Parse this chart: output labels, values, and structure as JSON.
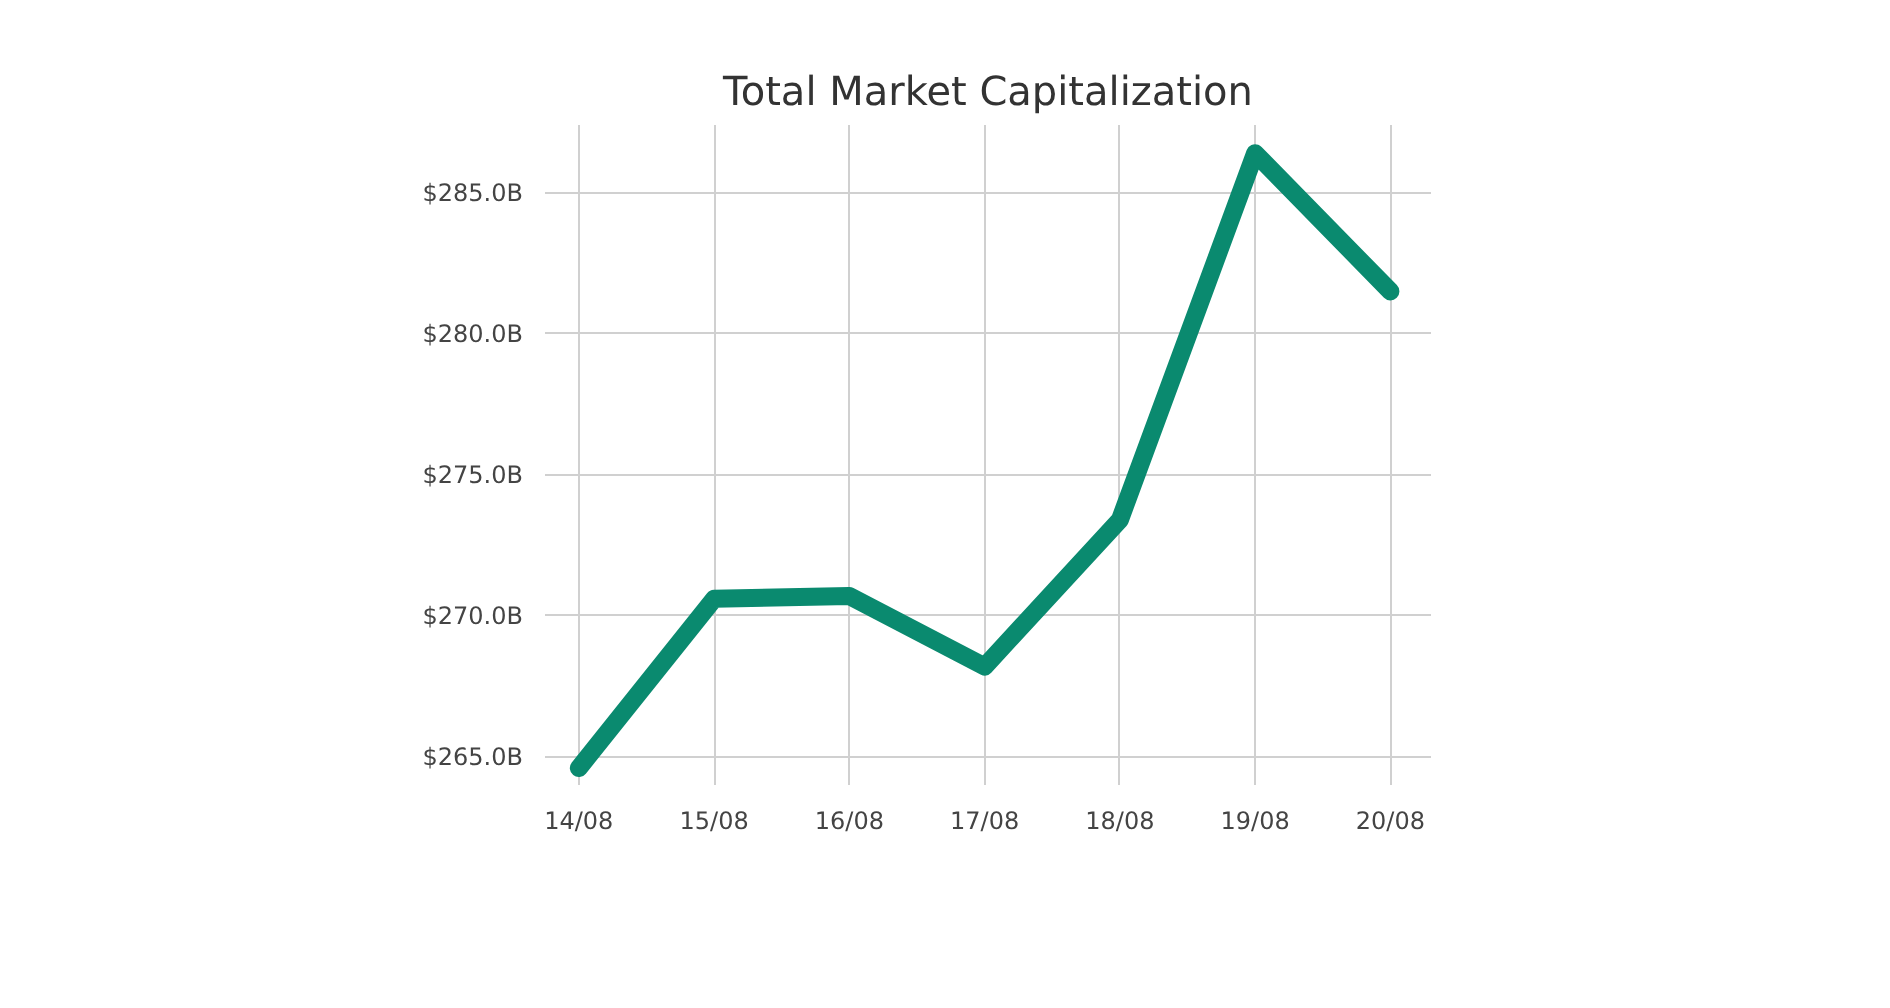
{
  "chart_data": {
    "type": "line",
    "title": "Total Market Capitalization",
    "categories": [
      "14/08",
      "15/08",
      "16/08",
      "17/08",
      "18/08",
      "19/08",
      "20/08"
    ],
    "series": [
      {
        "color": "#0a8a6f",
        "values": [
          264.6,
          270.6,
          270.7,
          268.2,
          273.4,
          286.4,
          281.5
        ]
      }
    ],
    "ylim": [
      264.0,
      287.4
    ],
    "yticks": [
      {
        "value": 265,
        "label": "$265.0B"
      },
      {
        "value": 270,
        "label": "$270.0B"
      },
      {
        "value": 275,
        "label": "$275.0B"
      },
      {
        "value": 280,
        "label": "$280.0B"
      },
      {
        "value": 285,
        "label": "$285.0B"
      }
    ],
    "grid": true,
    "marker": "none",
    "line_style": "solid"
  }
}
